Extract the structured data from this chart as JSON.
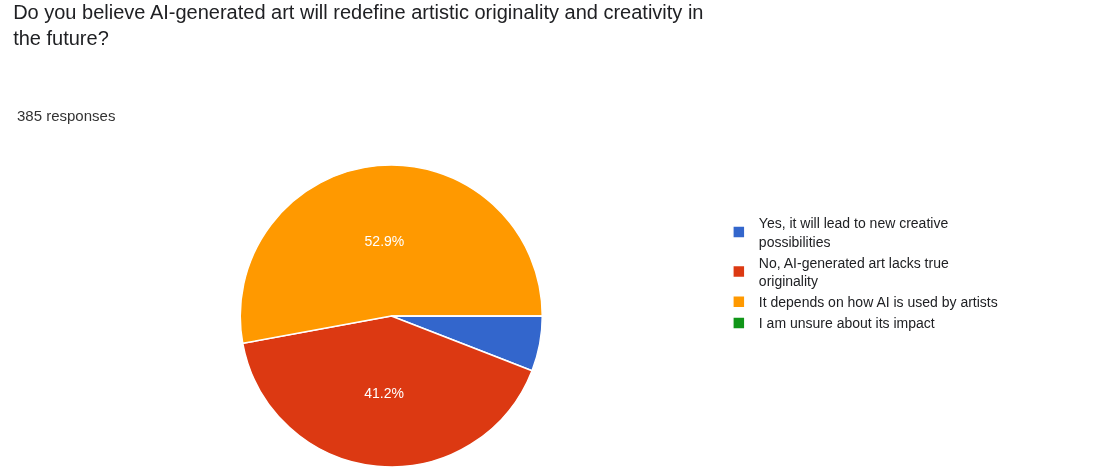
{
  "chart_data": {
    "type": "pie",
    "title": "Do you believe AI-generated art will redefine artistic originality and creativity in the future?",
    "subtitle": "385 responses",
    "categories": [
      "Yes, it will lead to new creative possibilities",
      "No, AI-generated art lacks true originality",
      "It depends on how AI is used by artists",
      "I am unsure about its impact"
    ],
    "values": [
      5.9,
      41.2,
      52.9,
      0
    ],
    "value_labels": [
      null,
      "41.2%",
      "52.9%",
      null
    ],
    "colors": [
      "#3366cc",
      "#dc3912",
      "#ff9900",
      "#109618"
    ],
    "legend": "right"
  }
}
